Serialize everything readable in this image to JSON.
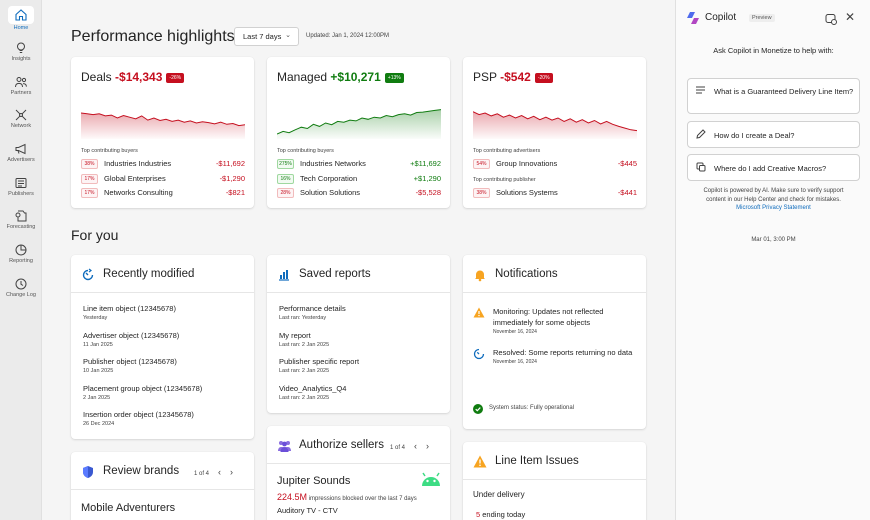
{
  "nav": [
    {
      "label": "Home",
      "icon": "home-icon"
    },
    {
      "label": "Insights",
      "icon": "lightbulb-icon"
    },
    {
      "label": "Partners",
      "icon": "people-icon"
    },
    {
      "label": "Network",
      "icon": "network-icon"
    },
    {
      "label": "Advertisers",
      "icon": "megaphone-icon"
    },
    {
      "label": "Publishers",
      "icon": "publisher-icon"
    },
    {
      "label": "Forecasting",
      "icon": "forecast-icon"
    },
    {
      "label": "Reporting",
      "icon": "reporting-icon"
    },
    {
      "label": "Change Log",
      "icon": "history-icon"
    }
  ],
  "header": {
    "title": "Performance highlights",
    "range": "Last 7 days",
    "updated": "Updated: Jan 1, 2024 12:00PM"
  },
  "colors": {
    "negative": "#c50f1f",
    "positive": "#107c10",
    "accent": "#0f6cbd"
  },
  "highlights": [
    {
      "name": "Deals",
      "value": "-$14,343",
      "badge": "-26%",
      "trend": "negative",
      "spark": [
        0.62,
        0.6,
        0.58,
        0.6,
        0.55,
        0.57,
        0.5,
        0.56,
        0.52,
        0.48,
        0.55,
        0.45,
        0.5,
        0.44,
        0.47,
        0.42,
        0.45,
        0.4,
        0.43,
        0.38,
        0.41,
        0.39,
        0.36,
        0.4,
        0.35,
        0.37,
        0.32,
        0.34
      ],
      "section": "Top contributing buyers",
      "rows": [
        {
          "pct": "38%",
          "name": "Industries Industries",
          "amount": "-$11,692",
          "trend": "negative"
        },
        {
          "pct": "17%",
          "name": "Global Enterprises",
          "amount": "-$1,290",
          "trend": "negative"
        },
        {
          "pct": "17%",
          "name": "Networks Consulting",
          "amount": "-$821",
          "trend": "negative"
        }
      ]
    },
    {
      "name": "Managed",
      "value": "+$10,271",
      "badge": "+13%",
      "trend": "positive",
      "spark": [
        0.12,
        0.18,
        0.15,
        0.22,
        0.28,
        0.25,
        0.35,
        0.3,
        0.38,
        0.34,
        0.42,
        0.4,
        0.45,
        0.43,
        0.5,
        0.47,
        0.52,
        0.5,
        0.56,
        0.53,
        0.58,
        0.6,
        0.57,
        0.63,
        0.64,
        0.66,
        0.68,
        0.7
      ],
      "section": "Top contributing buyers",
      "rows": [
        {
          "pct": "275%",
          "name": "Industries Networks",
          "amount": "+$11,692",
          "trend": "positive"
        },
        {
          "pct": "16%",
          "name": "Tech Corporation",
          "amount": "+$1,290",
          "trend": "positive"
        },
        {
          "pct": "28%",
          "name": "Solution Solutions",
          "amount": "-$5,528",
          "trend": "negative"
        }
      ]
    },
    {
      "name": "PSP",
      "value": "-$542",
      "badge": "-20%",
      "trend": "negative",
      "spark": [
        0.65,
        0.58,
        0.62,
        0.55,
        0.6,
        0.52,
        0.57,
        0.5,
        0.56,
        0.48,
        0.54,
        0.46,
        0.52,
        0.45,
        0.5,
        0.42,
        0.48,
        0.4,
        0.46,
        0.38,
        0.44,
        0.36,
        0.42,
        0.35,
        0.3,
        0.26,
        0.22,
        0.2
      ],
      "section": "Top contributing advertisers",
      "section2": "Top contributing publisher",
      "rows": [
        {
          "pct": "54%",
          "name": "Group Innovations",
          "amount": "-$445",
          "trend": "negative"
        },
        {
          "pct": "38%",
          "name": "Solutions Systems",
          "amount": "-$441",
          "trend": "negative"
        }
      ]
    }
  ],
  "for_you": "For you",
  "recent": {
    "title": "Recently modified",
    "items": [
      {
        "name": "Line item object (12345678)",
        "date": "Yesterday"
      },
      {
        "name": "Advertiser object (12345678)",
        "date": "11 Jan 2025"
      },
      {
        "name": "Publisher object (12345678)",
        "date": "10 Jan 2025"
      },
      {
        "name": "Placement group object (12345678)",
        "date": "2 Jan 2025"
      },
      {
        "name": "Insertion order object (12345678)",
        "date": "26 Dec 2024"
      }
    ]
  },
  "saved": {
    "title": "Saved reports",
    "items": [
      {
        "name": "Performance details",
        "date": "Last ran: Yesterday"
      },
      {
        "name": "My report",
        "date": "Last ran: 2 Jan 2025"
      },
      {
        "name": "Publisher specific report",
        "date": "Last ran: 2 Jan 2025"
      },
      {
        "name": "Video_Analytics_Q4",
        "date": "Last ran: 2 Jan 2025"
      }
    ]
  },
  "notifications": {
    "title": "Notifications",
    "items": [
      {
        "text": "Monitoring: Updates not reflected immediately for some objects",
        "date": "November 16, 2024",
        "icon": "warning-icon"
      },
      {
        "text": "Resolved: Some reports returning no data",
        "date": "November 16, 2024",
        "icon": "resolved-icon"
      }
    ],
    "status_label": "System status:",
    "status_value": "Fully operational"
  },
  "brands": {
    "title": "Review brands",
    "pager": "1 of 4",
    "first": "Mobile Adventurers"
  },
  "sellers": {
    "title": "Authorize sellers",
    "pager": "1 of 4",
    "name": "Jupiter Sounds",
    "metric": "224.5M",
    "metric_text": "impressions blocked over the last 7 days",
    "sub": "Auditory TV - CTV"
  },
  "issues": {
    "title": "Line Item Issues",
    "section": "Under delivery",
    "count": "5",
    "count_text": "ending today"
  },
  "copilot": {
    "title": "Copilot",
    "badge": "Preview",
    "ask": "Ask Copilot in Monetize to help with:",
    "prompts": [
      {
        "text": "What is a Guaranteed Delivery Line Item?",
        "icon": "lines-icon"
      },
      {
        "text": "How do I create a Deal?",
        "icon": "pencil-icon"
      },
      {
        "text": "Where do I add Creative Macros?",
        "icon": "macro-icon"
      }
    ],
    "note": "Copilot is powered by AI. Make sure to verify support content in our Help Center and check for mistakes.",
    "link": "Microsoft Privacy Statement",
    "time": "Mar 01, 3:00 PM"
  }
}
